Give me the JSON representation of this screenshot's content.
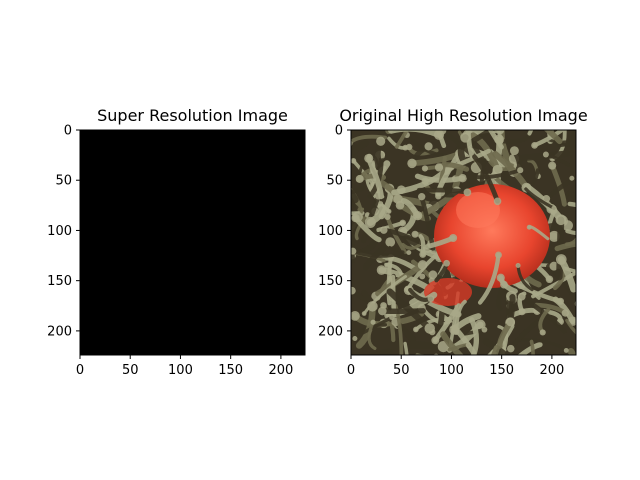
{
  "figure": {
    "background": "#ffffff"
  },
  "chart_data": [
    {
      "type": "image",
      "title": "Super Resolution Image",
      "xlim": [
        0,
        224
      ],
      "ylim": [
        224,
        0
      ],
      "xticks": [
        0,
        50,
        100,
        150,
        200
      ],
      "yticks": [
        0,
        50,
        100,
        150,
        200
      ],
      "image_fill": "#000000",
      "image_content": "solid black"
    },
    {
      "type": "image",
      "title": "Original High Resolution Image",
      "xlim": [
        0,
        224
      ],
      "ylim": [
        224,
        0
      ],
      "xticks": [
        0,
        50,
        100,
        150,
        200
      ],
      "yticks": [
        0,
        50,
        100,
        150,
        200
      ],
      "image_content": "photo of orange-red clownfish among green-brown sea anemone tentacles",
      "colors": {
        "tentacle_dark": "#3b3424",
        "tentacle_mid": "#6f6a4e",
        "tentacle_light": "#a9a888",
        "fish_red": "#e8452e",
        "fish_highlight": "#ff7a5c"
      }
    }
  ]
}
